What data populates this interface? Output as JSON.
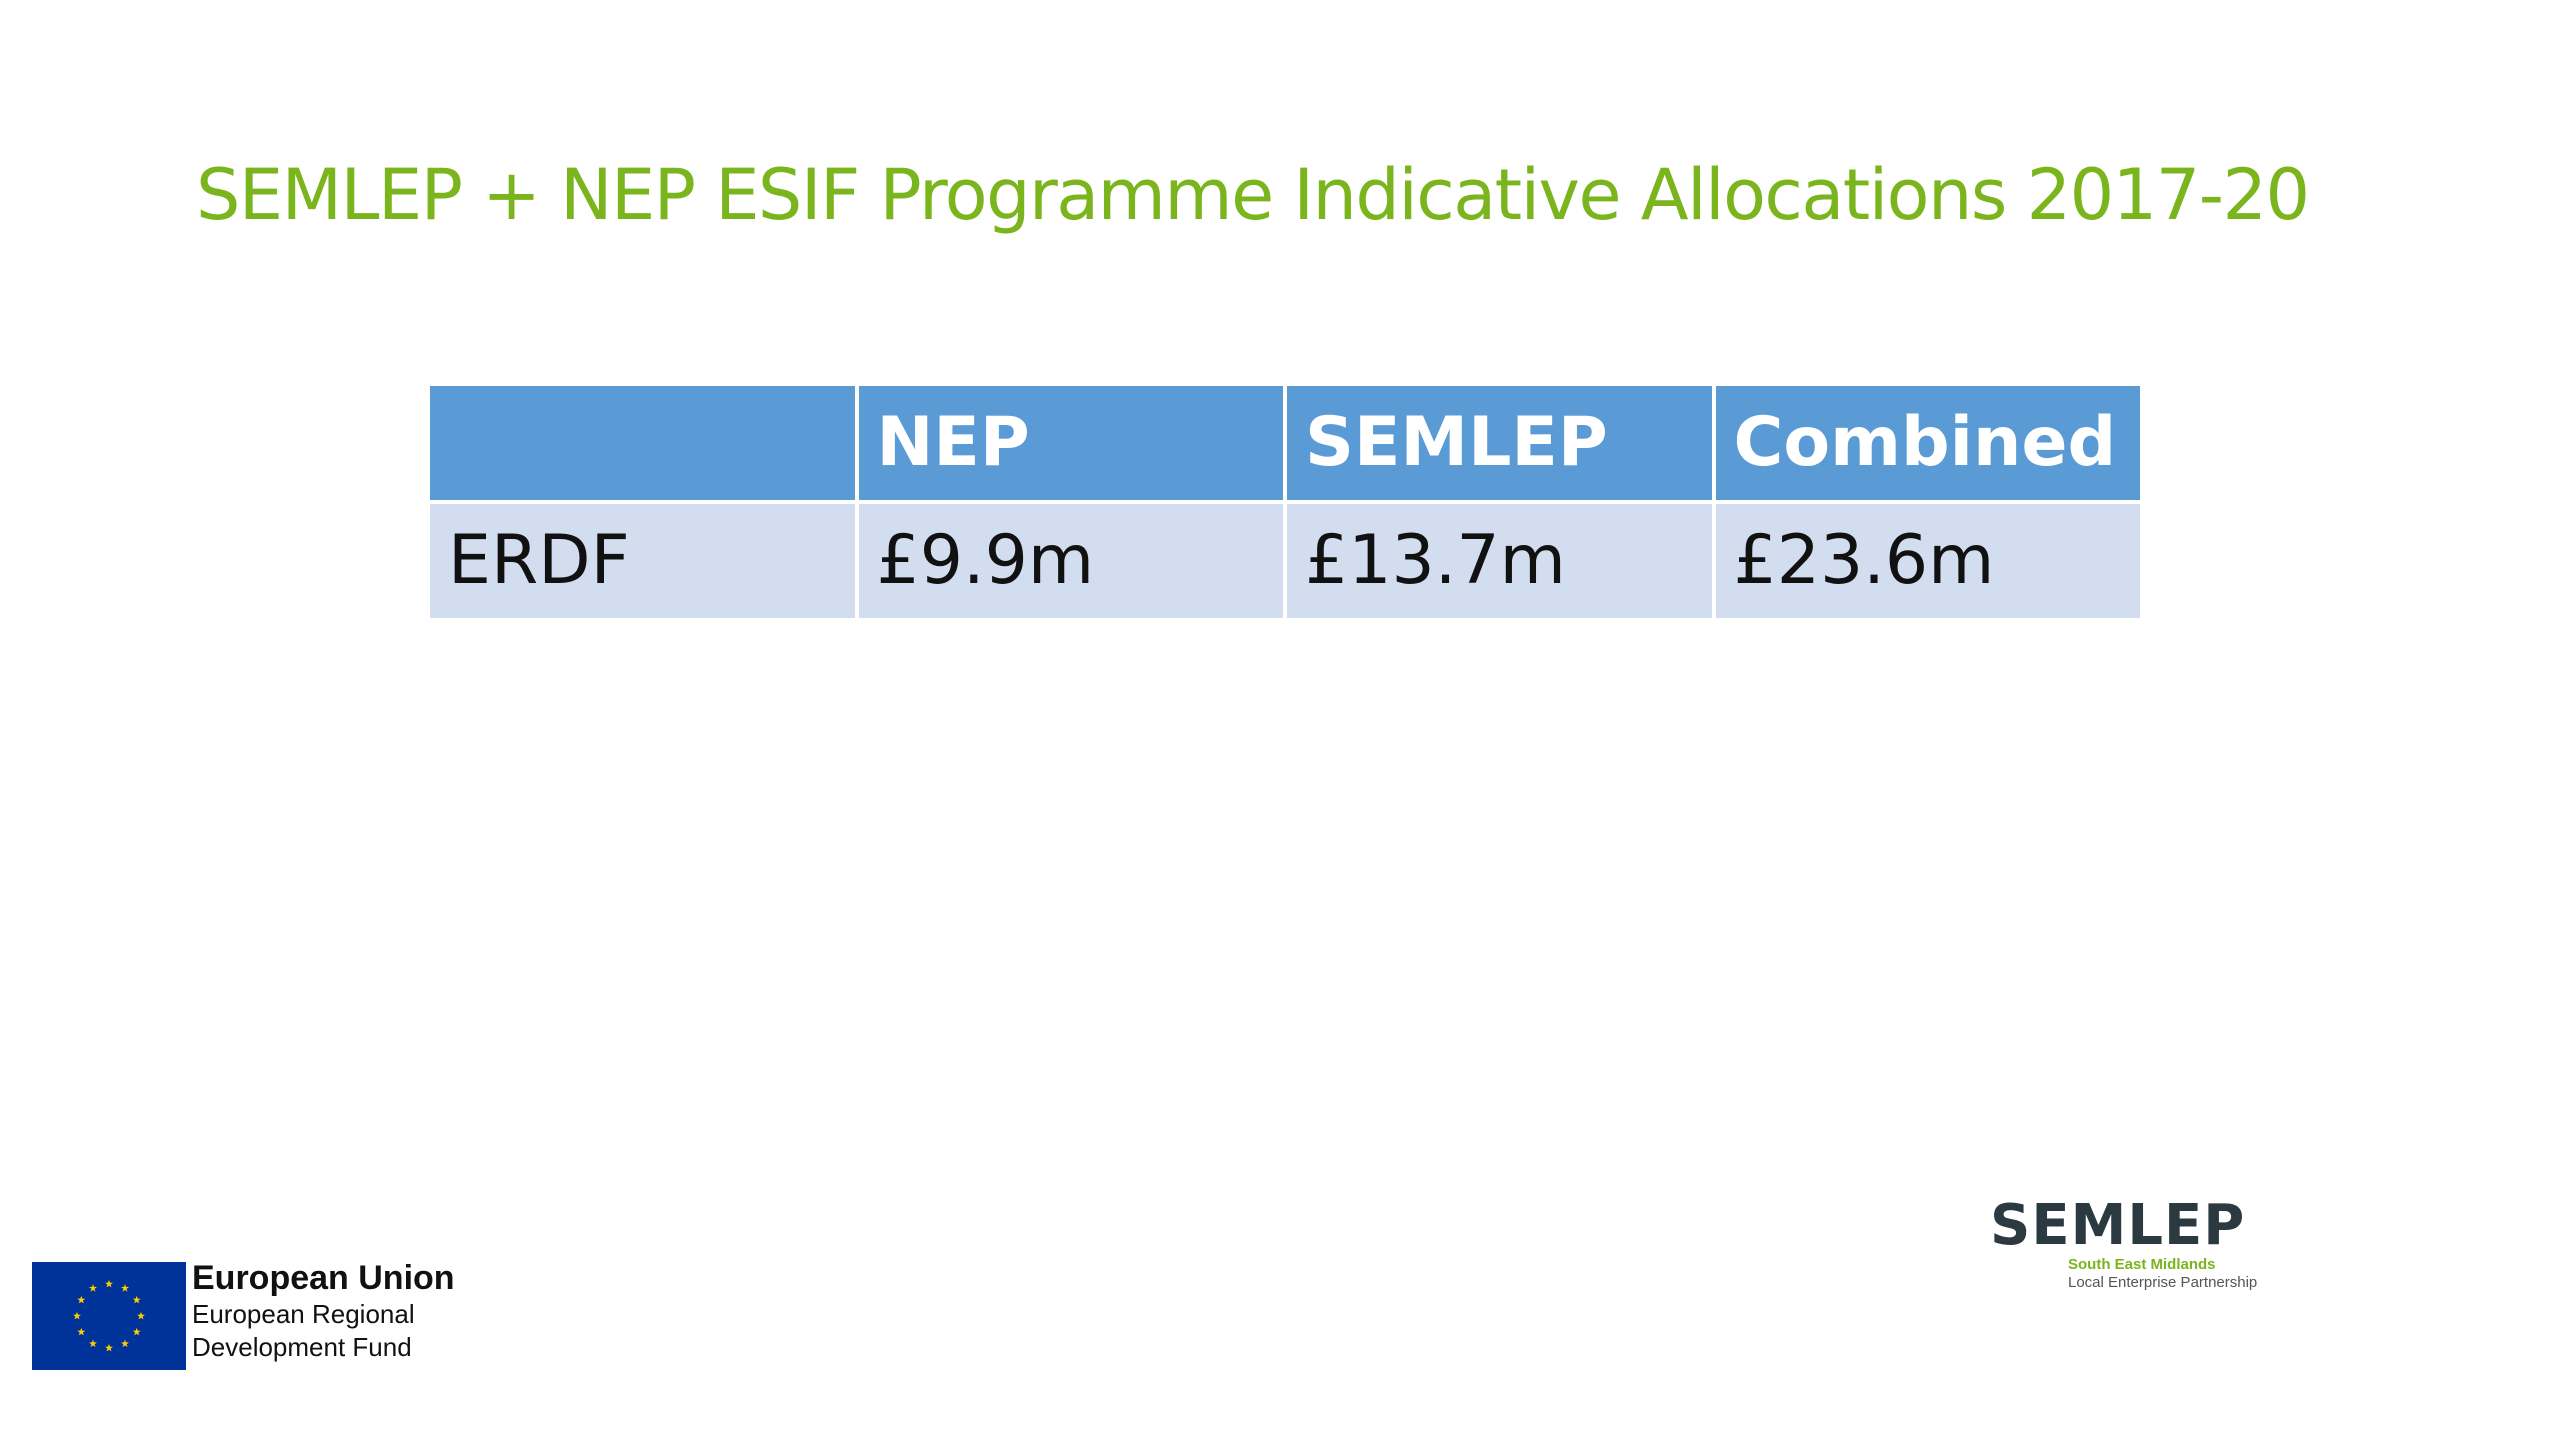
{
  "slide": {
    "title": "SEMLEP + NEP ESIF Programme Indicative Allocations 2017-20"
  },
  "table": {
    "headers": [
      "",
      "NEP",
      "SEMLEP",
      "Combined"
    ],
    "rows": [
      [
        "ERDF",
        "£9.9m",
        "£13.7m",
        "£23.6m"
      ]
    ]
  },
  "eu_logo": {
    "title": "European Union",
    "line1": "European Regional",
    "line2": "Development Fund"
  },
  "semlep_logo": {
    "wordmark": "SEMLEP",
    "subtitle1": "South East Midlands",
    "subtitle2": "Local Enterprise Partnership"
  },
  "colors": {
    "title_green": "#7ab51d",
    "header_blue": "#5b9bd5",
    "row_blue": "#d2deef",
    "eu_blue": "#003399",
    "eu_star": "#ffcc00",
    "semlep_dark": "#2b3a40"
  }
}
